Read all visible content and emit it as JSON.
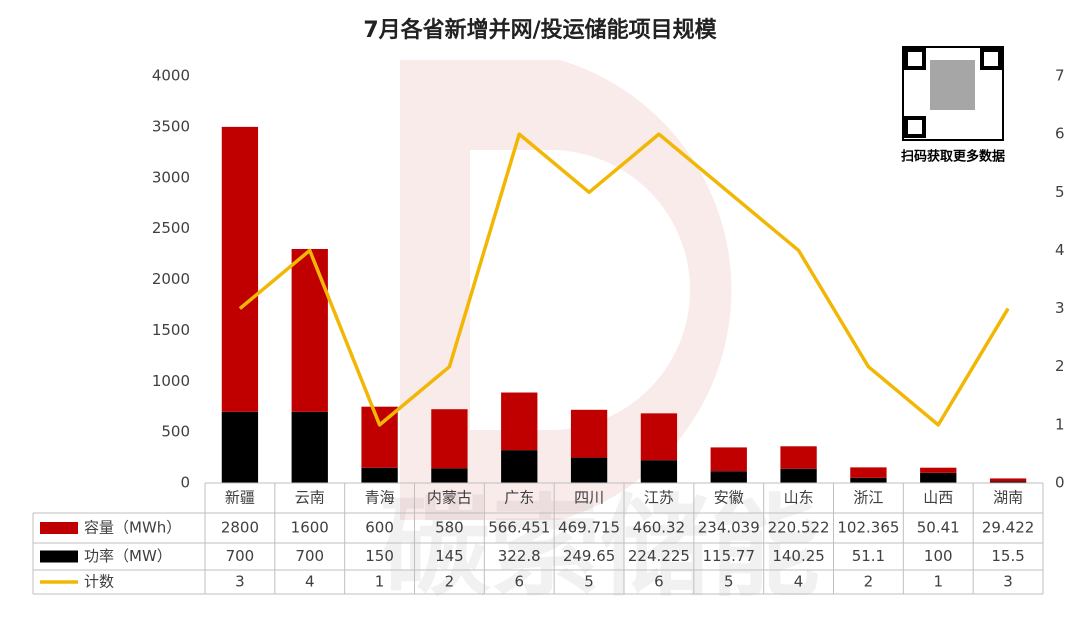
{
  "chart_data": {
    "type": "bar",
    "title": "7月各省新增并网/投运储能项目规模",
    "categories": [
      "新疆",
      "云南",
      "青海",
      "内蒙古",
      "广东",
      "四川",
      "江苏",
      "安徽",
      "山东",
      "浙江",
      "山西",
      "湖南"
    ],
    "series": [
      {
        "name": "容量（MWh）",
        "color": "#c00000",
        "type": "bar",
        "values": [
          2800,
          1600,
          600,
          580,
          566.451,
          469.715,
          460.32,
          234.039,
          220.522,
          102.365,
          50.41,
          29.422
        ]
      },
      {
        "name": "功率（MW）",
        "color": "#000000",
        "type": "bar",
        "values": [
          700,
          700,
          150,
          145,
          322.8,
          249.65,
          224.225,
          115.77,
          140.25,
          51.1,
          100,
          15.5
        ]
      },
      {
        "name": "计数",
        "color": "#f2b705",
        "type": "line",
        "axis": "y2",
        "values": [
          3,
          4,
          1,
          2,
          6,
          5,
          6,
          5,
          4,
          2,
          1,
          3
        ]
      }
    ],
    "stacked": true,
    "ylim": [
      0,
      4000
    ],
    "yticks": [
      0,
      500,
      1000,
      1500,
      2000,
      2500,
      3000,
      3500,
      4000
    ],
    "y2lim": [
      0,
      7
    ],
    "y2ticks": [
      0,
      1,
      2,
      3,
      4,
      5,
      6,
      7
    ],
    "grid": false,
    "qr_caption": "扫码获取更多数据",
    "watermark": "碳索储能"
  }
}
